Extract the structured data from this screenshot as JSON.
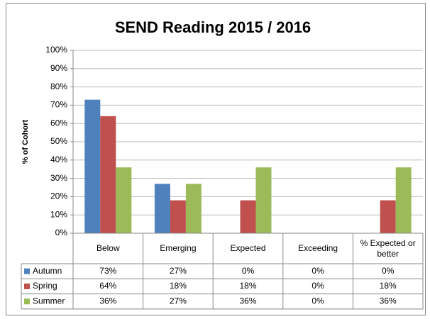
{
  "chart_data": {
    "type": "bar",
    "title": "SEND Reading 2015 / 2016",
    "ylabel": "% of Cohort",
    "categories": [
      "Below",
      "Emerging",
      "Expected",
      "Exceeding",
      "% Expected or better"
    ],
    "series": [
      {
        "name": "Autumn",
        "color": "#4f81bd",
        "values": [
          73,
          27,
          0,
          0,
          0
        ],
        "value_labels": [
          "73%",
          "27%",
          "0%",
          "0%",
          "0%"
        ]
      },
      {
        "name": "Spring",
        "color": "#c0504d",
        "values": [
          64,
          18,
          18,
          0,
          18
        ],
        "value_labels": [
          "64%",
          "18%",
          "18%",
          "0%",
          "18%"
        ]
      },
      {
        "name": "Summer",
        "color": "#9bbb59",
        "values": [
          36,
          27,
          36,
          0,
          36
        ],
        "value_labels": [
          "36%",
          "27%",
          "36%",
          "0%",
          "36%"
        ]
      }
    ],
    "ylim": [
      0,
      100
    ],
    "yticks": [
      {
        "value": 0,
        "label": "0%"
      },
      {
        "value": 10,
        "label": "10%"
      },
      {
        "value": 20,
        "label": "20%"
      },
      {
        "value": 30,
        "label": "30%"
      },
      {
        "value": 40,
        "label": "40%"
      },
      {
        "value": 50,
        "label": "50%"
      },
      {
        "value": 60,
        "label": "60%"
      },
      {
        "value": 70,
        "label": "70%"
      },
      {
        "value": 80,
        "label": "80%"
      },
      {
        "value": 90,
        "label": "90%"
      },
      {
        "value": 100,
        "label": "100%"
      }
    ],
    "grid": true
  }
}
